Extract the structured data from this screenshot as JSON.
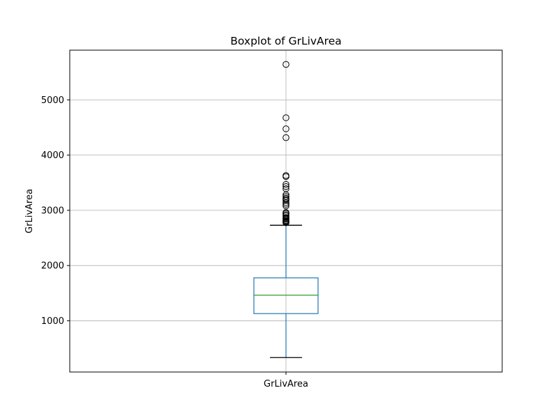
{
  "chart_data": {
    "type": "box",
    "title": "Boxplot of GrLivArea",
    "xlabel": "",
    "ylabel": "GrLivArea",
    "categories": [
      "GrLivArea"
    ],
    "ylim": [
      72,
      5900
    ],
    "yticks": [
      1000,
      2000,
      3000,
      4000,
      5000
    ],
    "grid": true,
    "box": {
      "min_whisker": 334,
      "q1": 1130,
      "median": 1464,
      "q3": 1777,
      "max_whisker": 2730
    },
    "outliers": [
      2775,
      2785,
      2795,
      2805,
      2820,
      2840,
      2855,
      2870,
      2900,
      2920,
      2945,
      2960,
      3080,
      3110,
      3140,
      3180,
      3200,
      3220,
      3250,
      3280,
      3390,
      3430,
      3470,
      3610,
      3630,
      4316,
      4476,
      4676,
      5642
    ],
    "colors": {
      "box": "#1f77b4",
      "median": "#2ca02c",
      "whisker_cap": "#000000",
      "grid": "#b0b0b0"
    }
  }
}
